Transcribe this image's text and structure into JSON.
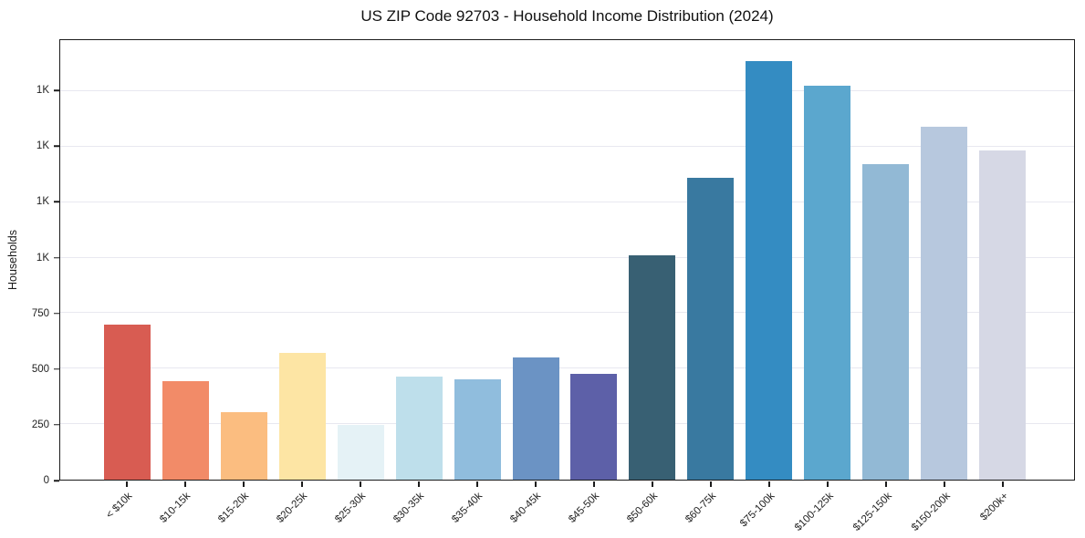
{
  "title": "US ZIP Code 92703 - Household Income Distribution (2024)",
  "colors": {
    "background": "#ffffff",
    "grid": "#e8e8f0",
    "spine": "#1b1b1b",
    "text": "#1a1a1a"
  },
  "chart_data": {
    "type": "bar",
    "title": "US ZIP Code 92703 - Household Income Distribution (2024)",
    "xlabel": "",
    "ylabel": "Households",
    "legend": "none",
    "grid": "horizontal",
    "ylim": [
      0,
      1980
    ],
    "categories": [
      "< $10k",
      "$10-15k",
      "$15-20k",
      "$20-25k",
      "$25-30k",
      "$30-35k",
      "$35-40k",
      "$40-45k",
      "$45-50k",
      "$50-60k",
      "$60-75k",
      "$75-100k",
      "$100-125k",
      "$125-150k",
      "$150-200k",
      "$200k+"
    ],
    "values": [
      700,
      445,
      305,
      570,
      245,
      465,
      450,
      550,
      475,
      1010,
      1360,
      1885,
      1775,
      1420,
      1590,
      1485
    ],
    "bar_colors": [
      "#d85c52",
      "#f28b68",
      "#fbbd80",
      "#fde5a4",
      "#e5f2f6",
      "#bedfeb",
      "#90bddd",
      "#6b93c4",
      "#5d60a8",
      "#386073",
      "#3979a0",
      "#348cc2",
      "#5ba7ce",
      "#92b9d5",
      "#b7c8de",
      "#d6d8e5"
    ],
    "yticks": [
      {
        "value": 0,
        "label": "0"
      },
      {
        "value": 250,
        "label": "250"
      },
      {
        "value": 500,
        "label": "500"
      },
      {
        "value": 750,
        "label": "750"
      },
      {
        "value": 1000,
        "label": "1K"
      },
      {
        "value": 1250,
        "label": "1K"
      },
      {
        "value": 1500,
        "label": "1K"
      },
      {
        "value": 1750,
        "label": "1K"
      }
    ]
  }
}
